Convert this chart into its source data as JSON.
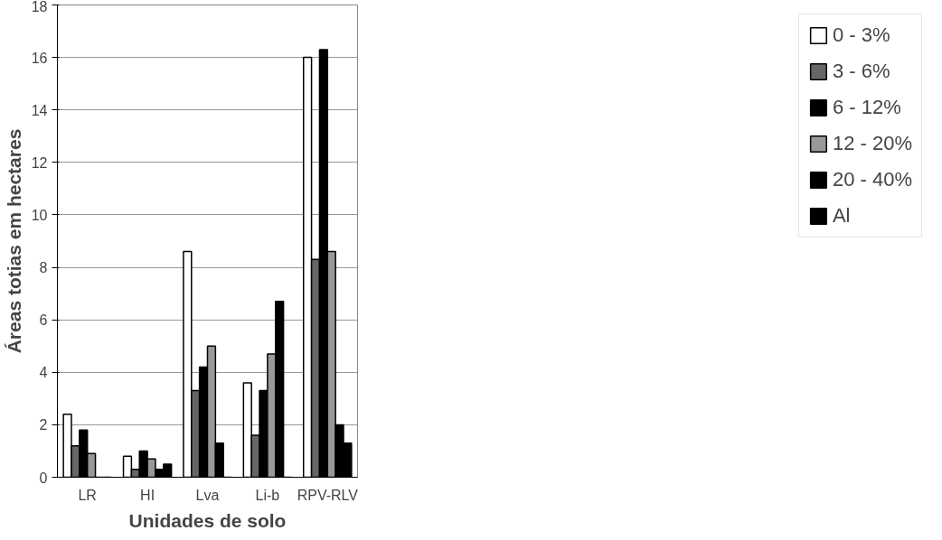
{
  "chart_data": {
    "type": "bar",
    "xlabel": "Unidades de solo",
    "ylabel": "Áreas totias em hectares",
    "categories": [
      "LR",
      "HI",
      "Lva",
      "Li-b",
      "RPV-RLV"
    ],
    "series": [
      {
        "name": "0 - 3%",
        "color": "#ffffff",
        "values": [
          2.4,
          0.8,
          8.6,
          3.6,
          16.0
        ]
      },
      {
        "name": "3 - 6%",
        "color": "#666666",
        "values": [
          1.2,
          0.3,
          3.3,
          1.6,
          8.3
        ]
      },
      {
        "name": "6 - 12%",
        "color": "#000000",
        "values": [
          1.8,
          1.0,
          4.2,
          3.3,
          16.3
        ]
      },
      {
        "name": "12 - 20%",
        "color": "#999999",
        "values": [
          0.9,
          0.7,
          5.0,
          4.7,
          8.6
        ]
      },
      {
        "name": "20 - 40%",
        "color": "#000000",
        "values": [
          0,
          0.3,
          1.3,
          6.7,
          2.0
        ]
      },
      {
        "name": "Al",
        "color": "#000000",
        "values": [
          0,
          0.5,
          0,
          0,
          1.3
        ]
      }
    ],
    "ylim": [
      0,
      18
    ],
    "yticks": [
      0,
      2,
      4,
      6,
      8,
      10,
      12,
      14,
      16,
      18
    ],
    "grid": "y",
    "legend": "right"
  }
}
